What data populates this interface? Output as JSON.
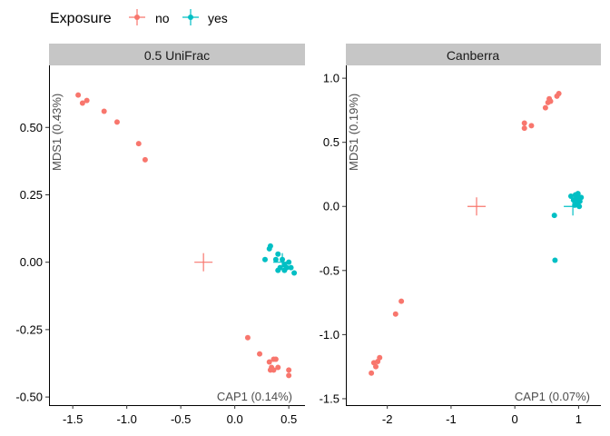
{
  "legend": {
    "title": "Exposure",
    "items": [
      {
        "label": "no",
        "color": "#F8766D"
      },
      {
        "label": "yes",
        "color": "#00BFC4"
      }
    ]
  },
  "chart_data": [
    {
      "type": "scatter",
      "strip_title": "0.5 UniFrac",
      "xlabel": "CAP1 (0.14%)",
      "ylabel": "MDS1 (0.43%)",
      "xlim": [
        -1.72,
        0.65
      ],
      "ylim": [
        -0.53,
        0.73
      ],
      "xticks": [
        -1.5,
        -1.0,
        -0.5,
        0.0,
        0.5
      ],
      "xtick_labels": [
        "-1.5",
        "-1.0",
        "-0.5",
        "0.0",
        "0.5"
      ],
      "yticks": [
        -0.5,
        -0.25,
        0.0,
        0.25,
        0.5
      ],
      "ytick_labels": [
        "-0.50",
        "-0.25",
        "0.00",
        "0.25",
        "0.50"
      ],
      "series": [
        {
          "name": "no",
          "color": "#F8766D",
          "centroid": [
            -0.29,
            0.0
          ],
          "points": [
            [
              -1.45,
              0.62
            ],
            [
              -1.41,
              0.59
            ],
            [
              -1.37,
              0.6
            ],
            [
              -1.21,
              0.56
            ],
            [
              -1.09,
              0.52
            ],
            [
              -0.89,
              0.44
            ],
            [
              -0.83,
              0.38
            ],
            [
              0.12,
              -0.28
            ],
            [
              0.23,
              -0.34
            ],
            [
              0.32,
              -0.37
            ],
            [
              0.34,
              -0.39
            ],
            [
              0.36,
              -0.4
            ],
            [
              0.38,
              -0.36
            ],
            [
              0.4,
              -0.39
            ],
            [
              0.33,
              -0.4
            ],
            [
              0.5,
              -0.4
            ],
            [
              0.5,
              -0.42
            ],
            [
              0.36,
              -0.36
            ]
          ]
        },
        {
          "name": "yes",
          "color": "#00BFC4",
          "centroid": [
            0.44,
            0.0
          ],
          "points": [
            [
              0.32,
              0.05
            ],
            [
              0.33,
              0.06
            ],
            [
              0.28,
              0.01
            ],
            [
              0.38,
              0.01
            ],
            [
              0.4,
              0.03
            ],
            [
              0.42,
              -0.02
            ],
            [
              0.44,
              0.01
            ],
            [
              0.46,
              -0.03
            ],
            [
              0.48,
              -0.02
            ],
            [
              0.5,
              0.0
            ],
            [
              0.52,
              -0.02
            ],
            [
              0.55,
              -0.04
            ],
            [
              0.4,
              -0.03
            ],
            [
              0.46,
              -0.01
            ]
          ]
        }
      ]
    },
    {
      "type": "scatter",
      "strip_title": "Canberra",
      "xlabel": "CAP1 (0.07%)",
      "ylabel": "MDS1 (0.19%)",
      "xlim": [
        -2.65,
        1.35
      ],
      "ylim": [
        -1.55,
        1.1
      ],
      "xticks": [
        -2,
        -1,
        0,
        1
      ],
      "xtick_labels": [
        "-2",
        "-1",
        "0",
        "1"
      ],
      "yticks": [
        -1.5,
        -1.0,
        -0.5,
        0.0,
        0.5,
        1.0
      ],
      "ytick_labels": [
        "-1.5",
        "-1.0",
        "-0.5",
        "0.0",
        "0.5",
        "1.0"
      ],
      "series": [
        {
          "name": "no",
          "color": "#F8766D",
          "centroid": [
            -0.6,
            0.0
          ],
          "points": [
            [
              -2.25,
              -1.3
            ],
            [
              -2.21,
              -1.22
            ],
            [
              -2.18,
              -1.25
            ],
            [
              -2.15,
              -1.21
            ],
            [
              -2.12,
              -1.18
            ],
            [
              -1.87,
              -0.84
            ],
            [
              -1.78,
              -0.74
            ],
            [
              0.15,
              0.65
            ],
            [
              0.15,
              0.61
            ],
            [
              0.26,
              0.63
            ],
            [
              0.48,
              0.77
            ],
            [
              0.52,
              0.81
            ],
            [
              0.54,
              0.84
            ],
            [
              0.56,
              0.82
            ],
            [
              0.66,
              0.86
            ],
            [
              0.69,
              0.88
            ]
          ]
        },
        {
          "name": "yes",
          "color": "#00BFC4",
          "centroid": [
            0.91,
            0.0
          ],
          "points": [
            [
              0.63,
              -0.42
            ],
            [
              0.62,
              -0.07
            ],
            [
              0.88,
              0.08
            ],
            [
              0.92,
              0.05
            ],
            [
              0.95,
              0.09
            ],
            [
              0.98,
              0.08
            ],
            [
              1.0,
              0.06
            ],
            [
              1.02,
              0.04
            ],
            [
              1.04,
              0.07
            ],
            [
              0.97,
              0.02
            ],
            [
              1.01,
              0.0
            ],
            [
              0.99,
              0.1
            ],
            [
              0.94,
              0.01
            ],
            [
              0.96,
              0.06
            ]
          ]
        }
      ]
    }
  ]
}
